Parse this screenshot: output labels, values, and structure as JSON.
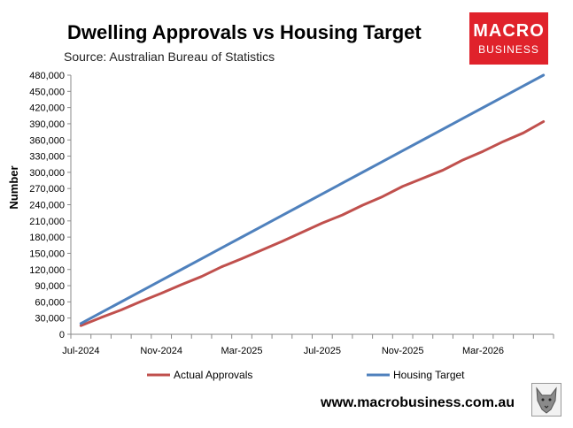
{
  "header": {
    "title": "Dwelling Approvals vs Housing Target",
    "subtitle": "Source: Australian Bureau of Statistics"
  },
  "logo": {
    "line1": "MACRO",
    "line2": "BUSINESS"
  },
  "footer": {
    "website": "www.macrobusiness.com.au",
    "mascot_icon": "wolf-icon"
  },
  "colors": {
    "actual": "#c0504d",
    "target": "#4f81bd",
    "logo_bg": "#e0222b"
  },
  "chart_data": {
    "type": "line",
    "title": "Dwelling Approvals vs Housing Target",
    "subtitle": "Source: Australian Bureau of Statistics",
    "ylabel": "Number",
    "xlabel": "",
    "ylim": [
      0,
      480000
    ],
    "yticks": [
      0,
      30000,
      60000,
      90000,
      120000,
      150000,
      180000,
      210000,
      240000,
      270000,
      300000,
      330000,
      360000,
      390000,
      420000,
      450000,
      480000
    ],
    "ytick_labels": [
      "0",
      "30,000",
      "60,000",
      "90,000",
      "120,000",
      "150,000",
      "180,000",
      "210,000",
      "240,000",
      "270,000",
      "300,000",
      "330,000",
      "360,000",
      "390,000",
      "420,000",
      "450,000",
      "480,000"
    ],
    "xtick_labels": [
      "Jul-2024",
      "Nov-2024",
      "Mar-2025",
      "Jul-2025",
      "Nov-2025",
      "Mar-2026"
    ],
    "xtick_index": [
      0,
      4,
      8,
      12,
      16,
      20
    ],
    "x": [
      "Jul-2024",
      "Aug-2024",
      "Sep-2024",
      "Oct-2024",
      "Nov-2024",
      "Dec-2024",
      "Jan-2025",
      "Feb-2025",
      "Mar-2025",
      "Apr-2025",
      "May-2025",
      "Jun-2025",
      "Jul-2025",
      "Aug-2025",
      "Sep-2025",
      "Oct-2025",
      "Nov-2025",
      "Dec-2025",
      "Jan-2026",
      "Feb-2026",
      "Mar-2026",
      "Apr-2026",
      "May-2026",
      "Jun-2026"
    ],
    "series": [
      {
        "name": "Actual Approvals",
        "color": "#c0504d",
        "values": [
          16000,
          31000,
          45000,
          61000,
          76000,
          92000,
          107000,
          125000,
          140000,
          156000,
          172000,
          189000,
          206000,
          221000,
          239000,
          255000,
          274000,
          289000,
          304000,
          323000,
          339000,
          357000,
          373000,
          394000
        ]
      },
      {
        "name": "Housing Target",
        "color": "#4f81bd",
        "values": [
          20000,
          40000,
          60000,
          80000,
          100000,
          120000,
          140000,
          160000,
          180000,
          200000,
          220000,
          240000,
          260000,
          280000,
          300000,
          320000,
          340000,
          360000,
          380000,
          400000,
          420000,
          440000,
          460000,
          480000
        ]
      }
    ],
    "legend": {
      "position": "bottom",
      "entries": [
        "Actual Approvals",
        "Housing Target"
      ]
    },
    "grid": false
  }
}
